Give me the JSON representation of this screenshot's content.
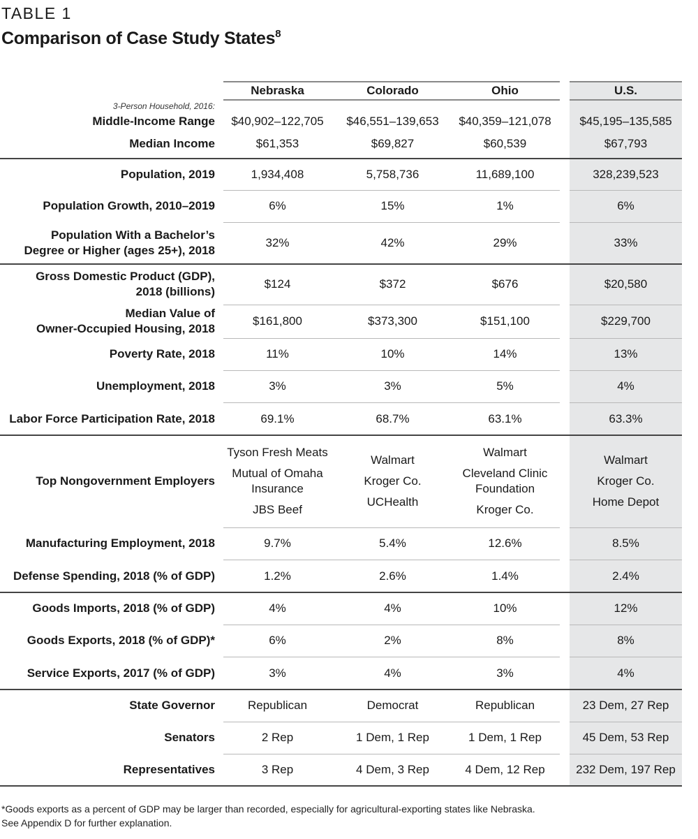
{
  "eyebrow": "TABLE 1",
  "title": "Comparison of Case Study States",
  "title_footnote_ref": "8",
  "colors": {
    "us_column_bg": "#e6e7e8",
    "rule_dark": "#444444",
    "rule_light": "#b8b8b8"
  },
  "columns": [
    "Nebraska",
    "Colorado",
    "Ohio",
    "U.S."
  ],
  "income_sublabel": "3-Person Household, 2016:",
  "income_rows": [
    {
      "label": "Middle-Income Range",
      "values": [
        "$40,902–122,705",
        "$46,551–139,653",
        "$40,359–121,078",
        "$45,195–135,585"
      ]
    },
    {
      "label": "Median Income",
      "values": [
        "$61,353",
        "$69,827",
        "$60,539",
        "$67,793"
      ]
    }
  ],
  "rows": [
    {
      "label": "Population, 2019",
      "values": [
        "1,934,408",
        "5,758,736",
        "11,689,100",
        "328,239,523"
      ]
    },
    {
      "label": "Population Growth, 2010–2019",
      "values": [
        "6%",
        "15%",
        "1%",
        "6%"
      ]
    },
    {
      "label": "Population With a Bachelor’s\nDegree or Higher (ages 25+), 2018",
      "values": [
        "32%",
        "42%",
        "29%",
        "33%"
      ]
    },
    {
      "label": "Gross Domestic Product (GDP),\n2018 (billions)",
      "values": [
        "$124",
        "$372",
        "$676",
        "$20,580"
      ]
    },
    {
      "label": "Median Value of\nOwner-Occupied Housing, 2018",
      "values": [
        "$161,800",
        "$373,300",
        "$151,100",
        "$229,700"
      ]
    },
    {
      "label": "Poverty Rate, 2018",
      "values": [
        "11%",
        "10%",
        "14%",
        "13%"
      ]
    },
    {
      "label": "Unemployment, 2018",
      "values": [
        "3%",
        "3%",
        "5%",
        "4%"
      ]
    },
    {
      "label": "Labor Force Participation Rate, 2018",
      "values": [
        "69.1%",
        "68.7%",
        "63.1%",
        "63.3%"
      ]
    },
    {
      "label": "Top Nongovernment Employers",
      "values": [
        [
          "Tyson Fresh Meats",
          "Mutual of Omaha\nInsurance",
          "JBS Beef"
        ],
        [
          "Walmart",
          "Kroger Co.",
          "UCHealth"
        ],
        [
          "Walmart",
          "Cleveland Clinic\nFoundation",
          "Kroger Co."
        ],
        [
          "Walmart",
          "Kroger Co.",
          "Home Depot"
        ]
      ]
    },
    {
      "label": "Manufacturing Employment, 2018",
      "values": [
        "9.7%",
        "5.4%",
        "12.6%",
        "8.5%"
      ]
    },
    {
      "label": "Defense Spending, 2018 (% of GDP)",
      "values": [
        "1.2%",
        "2.6%",
        "1.4%",
        "2.4%"
      ]
    },
    {
      "label": "Goods Imports, 2018 (% of GDP)",
      "values": [
        "4%",
        "4%",
        "10%",
        "12%"
      ]
    },
    {
      "label": "Goods Exports, 2018 (% of GDP)*",
      "values": [
        "6%",
        "2%",
        "8%",
        "8%"
      ]
    },
    {
      "label": "Service Exports, 2017 (% of GDP)",
      "values": [
        "3%",
        "4%",
        "3%",
        "4%"
      ]
    },
    {
      "label": "State Governor",
      "values": [
        "Republican",
        "Democrat",
        "Republican",
        "23 Dem, 27 Rep"
      ]
    },
    {
      "label": "Senators",
      "values": [
        "2 Rep",
        "1 Dem, 1 Rep",
        "1 Dem, 1 Rep",
        "45 Dem, 53 Rep"
      ]
    },
    {
      "label": "Representatives",
      "values": [
        "3 Rep",
        "4 Dem, 3 Rep",
        "4 Dem, 12 Rep",
        "232 Dem, 197 Rep"
      ]
    }
  ],
  "footnote": [
    "*Goods exports as a percent of GDP may be larger than recorded, especially for agricultural-exporting states like Nebraska.",
    "See Appendix D for further explanation."
  ]
}
